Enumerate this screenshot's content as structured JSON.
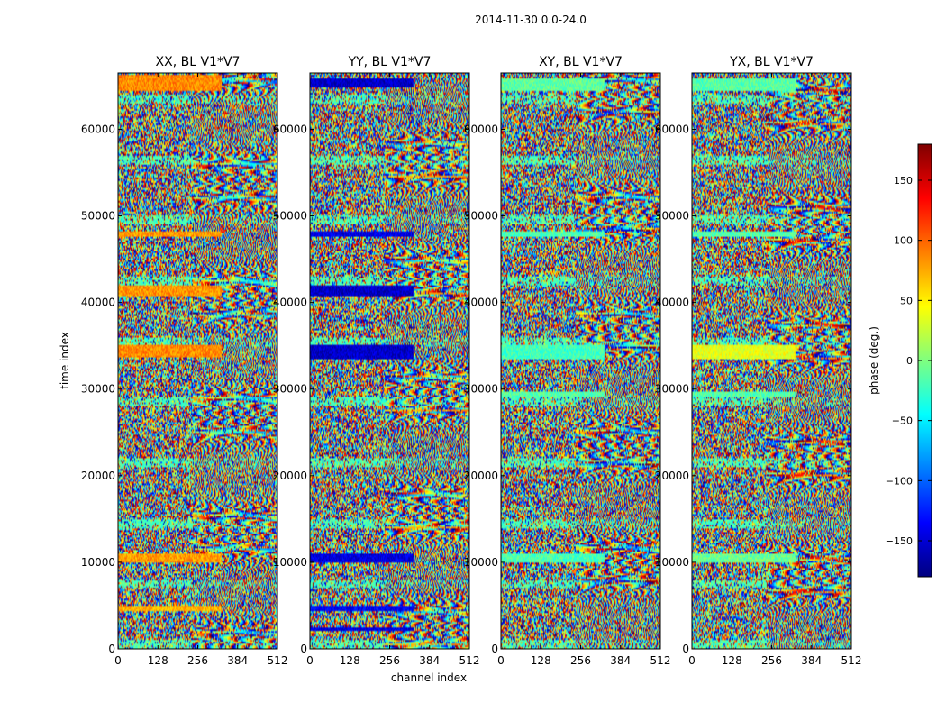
{
  "chart_data": {
    "type": "heatmap",
    "suptitle": "2014-11-30 0.0-24.0",
    "xlabel": "channel index",
    "ylabel": "time index",
    "xlim": [
      0,
      512
    ],
    "ylim": [
      0,
      66500
    ],
    "xticks": [
      0,
      128,
      256,
      384,
      512
    ],
    "yticks": [
      0,
      10000,
      20000,
      30000,
      40000,
      50000,
      60000
    ],
    "colorbar": {
      "label": "phase (deg.)",
      "range": [
        -180,
        180
      ],
      "ticks": [
        150,
        100,
        50,
        0,
        -50,
        -100,
        -150
      ],
      "tick_labels": [
        "150",
        "100",
        "50",
        "0",
        "−50",
        "−100",
        "−150"
      ],
      "colormap": "jet",
      "colors": [
        "#00007f",
        "#0000ff",
        "#007fff",
        "#00ffff",
        "#7fff7f",
        "#ffff00",
        "#ff7f00",
        "#ff0000",
        "#7f0000"
      ]
    },
    "panels": [
      {
        "title": "XX, BL V1*V7",
        "seed": 11,
        "bias": 0.75,
        "bands": [
          [
            64500,
            66200,
            0.74
          ],
          [
            47500,
            48300,
            0.72
          ],
          [
            40800,
            41900,
            0.73
          ],
          [
            33600,
            35200,
            0.74
          ],
          [
            10000,
            11000,
            0.72
          ],
          [
            4300,
            4900,
            0.7
          ]
        ]
      },
      {
        "title": "YY, BL V1*V7",
        "seed": 23,
        "bias": 0.5,
        "bands": [
          [
            64800,
            65900,
            0.07
          ],
          [
            47500,
            48200,
            0.1
          ],
          [
            40800,
            41900,
            0.07
          ],
          [
            33500,
            35200,
            0.07
          ],
          [
            10000,
            11000,
            0.09
          ],
          [
            4300,
            4900,
            0.12
          ],
          [
            2000,
            2500,
            0.1
          ]
        ]
      },
      {
        "title": "XY, BL V1*V7",
        "seed": 37,
        "bias": 0.48,
        "bands": [
          [
            64500,
            65800,
            0.47
          ],
          [
            47500,
            48300,
            0.45
          ],
          [
            33500,
            35200,
            0.44
          ],
          [
            29000,
            29800,
            0.46
          ],
          [
            10000,
            11000,
            0.45
          ]
        ]
      },
      {
        "title": "YX, BL V1*V7",
        "seed": 53,
        "bias": 0.52,
        "bands": [
          [
            64500,
            65800,
            0.46
          ],
          [
            47500,
            48300,
            0.46
          ],
          [
            33500,
            35200,
            0.6
          ],
          [
            29000,
            29800,
            0.46
          ],
          [
            10000,
            11000,
            0.48
          ]
        ]
      }
    ],
    "tick_labels_x": [
      "0",
      "128",
      "256",
      "384",
      "512"
    ],
    "tick_labels_y": [
      "0",
      "10000",
      "20000",
      "30000",
      "40000",
      "50000",
      "60000"
    ]
  }
}
